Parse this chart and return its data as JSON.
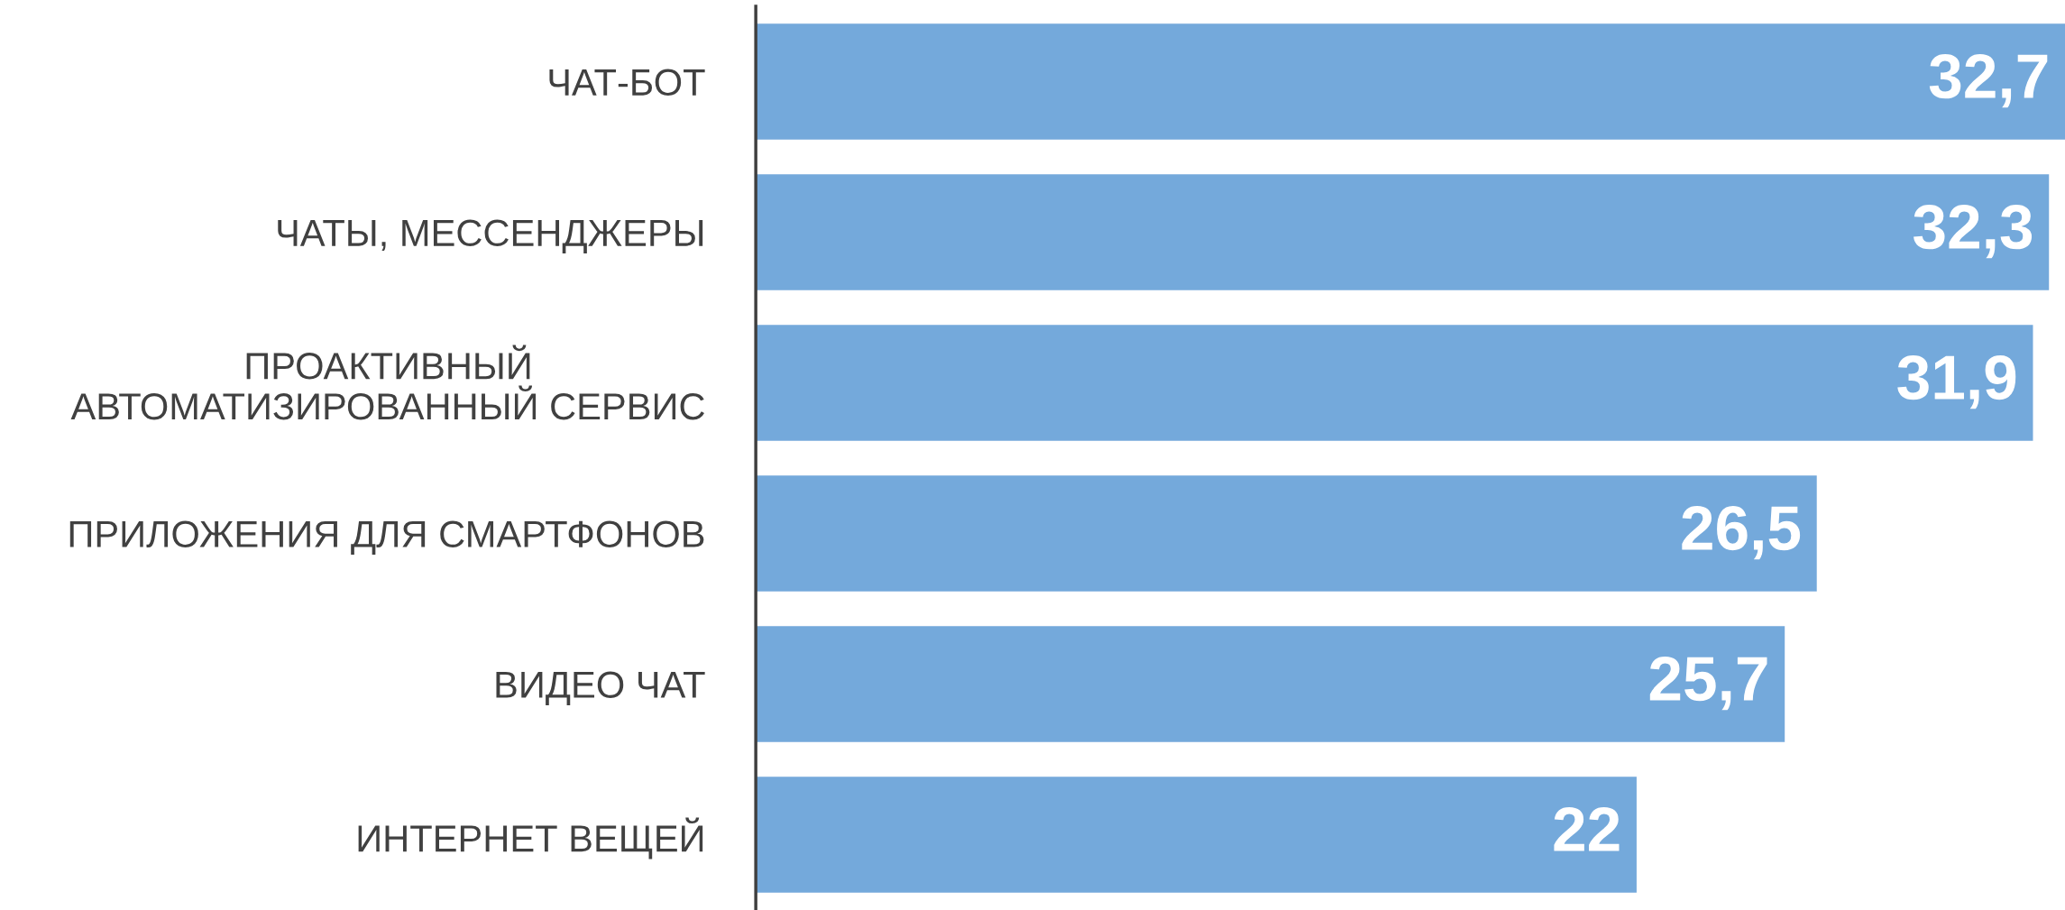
{
  "chart_data": {
    "type": "bar",
    "orientation": "horizontal",
    "categories": [
      "ЧАТ-БОТ",
      "ЧАТЫ, МЕССЕНДЖЕРЫ",
      "ПРОАКТИВНЫЙ\nАВТОМАТИЗИРОВАННЫЙ СЕРВИС",
      "ПРИЛОЖЕНИЯ ДЛЯ СМАРТФОНОВ",
      "ВИДЕО ЧАТ",
      "ИНТЕРНЕТ ВЕЩЕЙ"
    ],
    "values": [
      32.7,
      32.3,
      31.9,
      26.5,
      25.7,
      22
    ],
    "value_labels": [
      "32,7",
      "32,3",
      "31,9",
      "26,5",
      "25,7",
      "22"
    ],
    "color": "#74a9db",
    "grid": false,
    "legend": false
  }
}
